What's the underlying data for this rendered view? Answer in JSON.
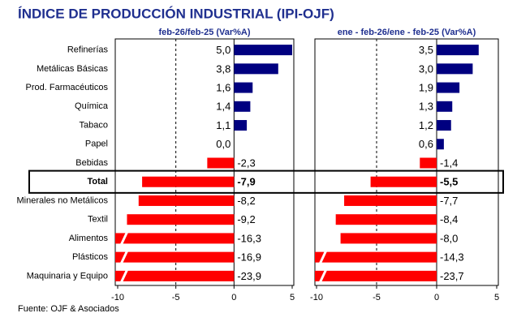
{
  "chart_data": {
    "type": "bar",
    "title": "ÍNDICE DE PRODUCCIÓN INDUSTRIAL (IPI-OJF)",
    "source": "Fuente: OJF & Asociados",
    "categories": [
      "Refinerías",
      "Metálicas Básicas",
      "Prod. Farmacéuticos",
      "Química",
      "Tabaco",
      "Papel",
      "Bebidas",
      "Total",
      "Minerales no Metálicos",
      "Textil",
      "Alimentos",
      "Plásticos",
      "Maquinaria y Equipo"
    ],
    "highlight": "Total",
    "colors": {
      "positive": "#000080",
      "negative": "#ff0000"
    },
    "xlim": [
      -10,
      5
    ],
    "xticks": [
      -10,
      -5,
      0,
      5
    ],
    "dashed_gridline": -5,
    "panels": [
      {
        "subtitle": "feb-26/feb-25  (Var%A)",
        "values": [
          5.0,
          3.8,
          1.6,
          1.4,
          1.1,
          0.0,
          -2.3,
          -7.9,
          -8.2,
          -9.2,
          -16.3,
          -16.9,
          -23.9
        ],
        "value_labels": [
          "5,0",
          "3,8",
          "1,6",
          "1,4",
          "1,1",
          "0,0",
          "-2,3",
          "-7,9",
          "-8,2",
          "-9,2",
          "-16,3",
          "-16,9",
          "-23,9"
        ]
      },
      {
        "subtitle": "ene - feb-26/ene - feb-25  (Var%A)",
        "values": [
          3.5,
          3.0,
          1.9,
          1.3,
          1.2,
          0.6,
          -1.4,
          -5.5,
          -7.7,
          -8.4,
          -8.0,
          -14.3,
          -23.7
        ],
        "value_labels": [
          "3,5",
          "3,0",
          "1,9",
          "1,3",
          "1,2",
          "0,6",
          "-1,4",
          "-5,5",
          "-7,7",
          "-8,4",
          "-8,0",
          "-14,3",
          "-23,7"
        ]
      }
    ]
  }
}
